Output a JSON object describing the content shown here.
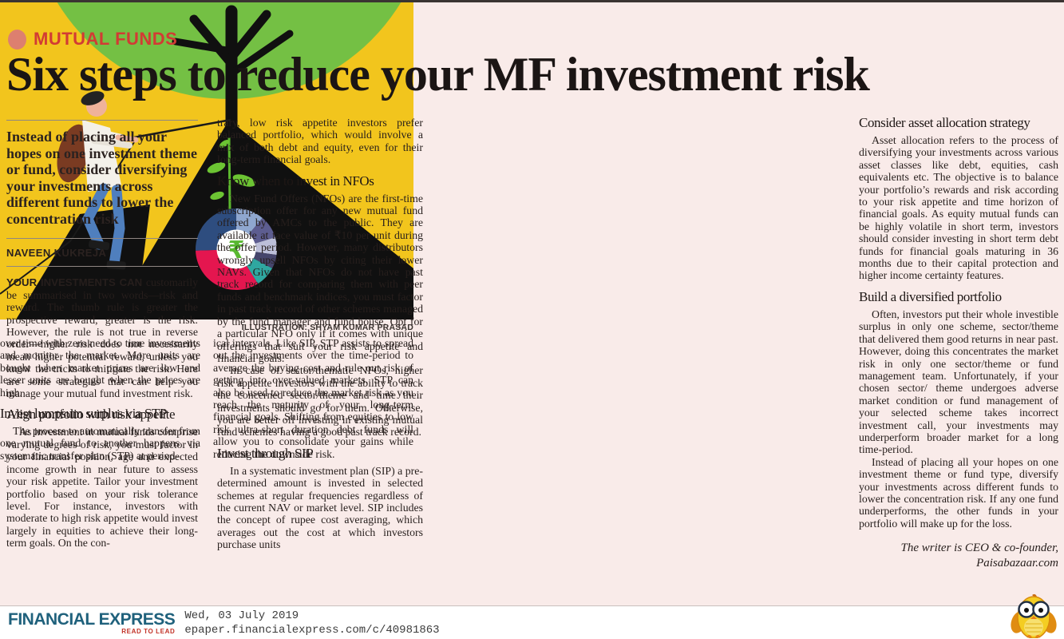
{
  "kicker": {
    "label": "MUTUAL FUNDS"
  },
  "headline": "Six steps to reduce your MF investment risk",
  "standfirst": "Instead of placing all your hopes on one investment theme or fund, consider diversifying your investments across different funds to lower the concentration risk",
  "byline": "NAVEEN KUKREJA",
  "body": {
    "lead_strong": "YOUR INVESTMENTS CAN",
    "lead_text": " customarily be summarised in two words—risk and reward. The thumb rule is greater the prospective reward, greater is the risk. However, the rule is not true in reverse order—higher risk does not necessarily mean higher potential reward, unless you know the tricks to mitigate the risk. Here are some strategies that can help you manage your mutual fund investment risk.",
    "s1_head": "Align portfolio with risk appetite",
    "s1_p1": "As investment in mutual funds comprise varying degrees of risk, you must factor in your financial position, age and expected income growth in near future to assess your risk appetite. Tailor your investment portfolio based on your risk tolerance level. For instance, investors with moderate to high risk appetite would invest largely in equities to achieve their long-term goals. On the con-",
    "s1_p2": "trary, low risk appetite investors prefer balanced portfolio, which would involve a mix of both debt and equity, even for their long-term financial goals.",
    "s2_head": "Know when to invest in NFOs",
    "s2_p1": "New Fund Offers (NFOs) are the first-time subscription offer for any new mutual fund offered by AMCs to the public. They are available at face value of ₹10 per unit during the offer period. However, many distributors wrongly upsell NFOs by citing their lower NAVs. Given that NFOs do not have past track record for comparing them with peer funds and benchmark indices, you must factor in past track record of other schemes managed by the fund manager and fund house. Opt for a particular NFO only if it comes with unique offerings that suit your risk appetite and financial goals.",
    "s2_p2": "In case of sector/thematic NFOs, higher risk appetite investors with the ability to track the concerned sector/theme and time their investments should go for them. Otherwise, you are better off investing in existing mutual fund schemes having a good past track record.",
    "s3_head": "Invest through SIP",
    "s3_p1": "In a systematic investment plan (SIP) a pre-determined amount is invested in selected schemes at regular frequencies regardless of the current NAV or market level. SIP includes the concept of rupee cost averaging, which averages out the cost at which investors purchase units",
    "s3_p2": "over time with zero need to time investments and monitor the market. More units are bought when market prices are low and lesser units are bought when the prices are high.",
    "s4_head": "Invest lumpsum surplus via STP",
    "s4_p1": "The process to automatically transfer from one mutual fund to another happens via systematic transfer plan (STP) at period-",
    "s4_p2": "ical intervals. Like SIP, STP assists to spread out the investments over the time-period to average the buying cost and rule out risk of getting into over-valued markets. STP can also be used to reduce the market risk as you reach the maturity of your long-term financial goals. Shifting from equities to low risk ultra-short duration debt funds will allow you to consolidate your gains while reducing the downside risk.",
    "s5_head": "Consider asset allocation strategy",
    "s5_p1": "Asset allocation refers to the process of diversifying your investments across various asset classes like debt, equities, cash equivalents etc. The objective is to balance your portfolio’s rewards and risk according to your risk appetite and time horizon of financial goals. As equity mutual funds can be highly volatile in short term, investors should consider investing in short term debt funds for financial goals maturing in 36 months due to their capital protection and higher income certainty features.",
    "s6_head": "Build a diversified portfolio",
    "s6_p1": "Often, investors put their whole investible surplus in only one scheme, sector/theme that delivered them good returns in near past. However, doing this concentrates the market risk in only one sector/theme or fund management team. Unfortunately, if your chosen sector/ theme undergoes adverse market condition or fund management of your selected scheme takes incorrect investment call, your investments may underperform broader market for a long time-period.",
    "s6_p2": "Instead of placing all your hopes on one investment theme or fund type, diversify your investments across different funds to lower the concentration risk. If any one fund underperforms, the other funds in your portfolio will make up for the loss.",
    "writer_credit": "The writer is CEO & co-founder, Paisabazaar.com"
  },
  "illustration": {
    "credit": "ILLUSTRATION: SHYAM KUMAR PRASAD",
    "rupee_symbol": "₹",
    "colors": {
      "background": "#f2c51d",
      "canopy": "#74c044",
      "mountain": "#101010",
      "pie_center": "#ffffff",
      "rupee": "#58b830"
    },
    "pie_slices": [
      {
        "name": "periwinkle",
        "color": "#8fa7cf",
        "deg": 40
      },
      {
        "name": "slate-purple",
        "color": "#5d5d90",
        "deg": 33
      },
      {
        "name": "lavender",
        "color": "#bcbfd9",
        "deg": 25
      },
      {
        "name": "dark-slate",
        "color": "#45456b",
        "deg": 20
      },
      {
        "name": "teal",
        "color": "#2fa7a0",
        "deg": 30
      },
      {
        "name": "crimson",
        "color": "#e4164f",
        "deg": 120
      },
      {
        "name": "navy",
        "color": "#2e4d7f",
        "deg": 92
      }
    ]
  },
  "footer": {
    "brand": "FINANCIAL EXPRESS",
    "tagline": "READ TO LEAD",
    "date": "Wed, 03 July 2019",
    "url": "epaper.financialexpress.com/c/40981863"
  }
}
